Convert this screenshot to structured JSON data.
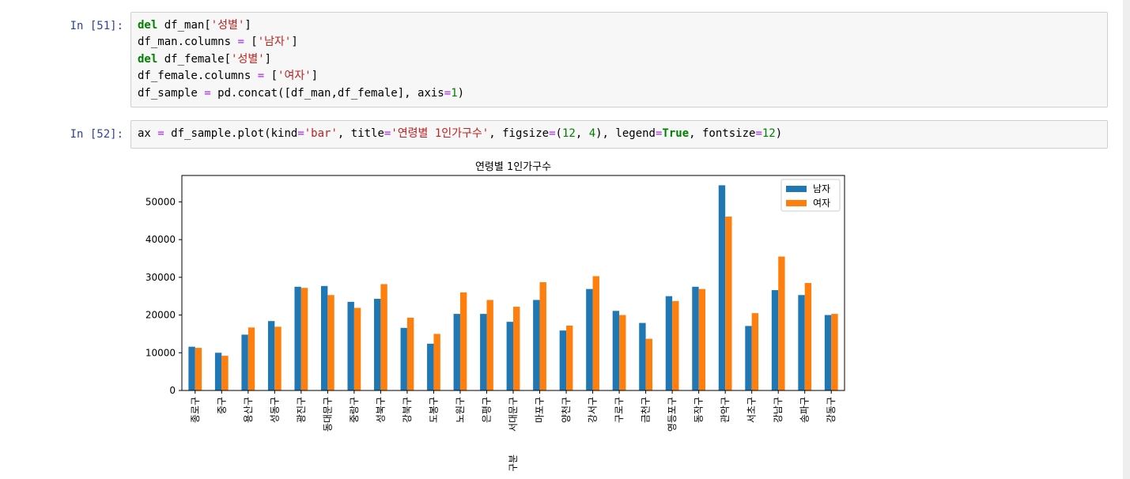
{
  "cells": [
    {
      "prompt": "In [51]:",
      "lines": [
        [
          {
            "t": "del",
            "c": "kw"
          },
          {
            "t": " df_man"
          },
          {
            "t": "["
          },
          {
            "t": "'성별'",
            "c": "str"
          },
          {
            "t": "]"
          }
        ],
        [
          {
            "t": "df_man.columns "
          },
          {
            "t": "=",
            "c": "op"
          },
          {
            "t": " ["
          },
          {
            "t": "'남자'",
            "c": "str"
          },
          {
            "t": "]"
          }
        ],
        [
          {
            "t": "del",
            "c": "kw"
          },
          {
            "t": " df_female"
          },
          {
            "t": "["
          },
          {
            "t": "'성별'",
            "c": "str"
          },
          {
            "t": "]"
          }
        ],
        [
          {
            "t": "df_female.columns "
          },
          {
            "t": "=",
            "c": "op"
          },
          {
            "t": " ["
          },
          {
            "t": "'여자'",
            "c": "str"
          },
          {
            "t": "]"
          }
        ],
        [
          {
            "t": "df_sample "
          },
          {
            "t": "=",
            "c": "op"
          },
          {
            "t": " pd.concat([df_man,df_female], axis"
          },
          {
            "t": "=",
            "c": "op"
          },
          {
            "t": "1",
            "c": "num"
          },
          {
            "t": ")"
          }
        ]
      ]
    },
    {
      "prompt": "In [52]:",
      "lines": [
        [
          {
            "t": "ax "
          },
          {
            "t": "=",
            "c": "op"
          },
          {
            "t": " df_sample.plot(kind"
          },
          {
            "t": "=",
            "c": "op"
          },
          {
            "t": "'bar'",
            "c": "str"
          },
          {
            "t": ", title"
          },
          {
            "t": "=",
            "c": "op"
          },
          {
            "t": "'연령별 1인가구수'",
            "c": "str"
          },
          {
            "t": ", figsize"
          },
          {
            "t": "=",
            "c": "op"
          },
          {
            "t": "("
          },
          {
            "t": "12",
            "c": "num"
          },
          {
            "t": ", "
          },
          {
            "t": "4",
            "c": "num"
          },
          {
            "t": "), legend"
          },
          {
            "t": "=",
            "c": "op"
          },
          {
            "t": "True",
            "c": "kw"
          },
          {
            "t": ", fontsize"
          },
          {
            "t": "=",
            "c": "op"
          },
          {
            "t": "12",
            "c": "num"
          },
          {
            "t": ")"
          }
        ]
      ]
    }
  ],
  "chart_data": {
    "type": "bar",
    "title": "연령별 1인가구수",
    "xlabel": "구분",
    "ylabel": "",
    "ylim": [
      0,
      57000
    ],
    "yticks": [
      0,
      10000,
      20000,
      30000,
      40000,
      50000
    ],
    "legend_position": "top-right",
    "grid": false,
    "categories": [
      "종로구",
      "중구",
      "용산구",
      "성동구",
      "광진구",
      "동대문구",
      "중랑구",
      "성북구",
      "강북구",
      "도봉구",
      "노원구",
      "은평구",
      "서대문구",
      "마포구",
      "양천구",
      "강서구",
      "구로구",
      "금천구",
      "영등포구",
      "동작구",
      "관악구",
      "서초구",
      "강남구",
      "송파구",
      "강동구"
    ],
    "series": [
      {
        "name": "남자",
        "color": "#1f77b4",
        "values": [
          11600,
          10000,
          14800,
          18400,
          27500,
          27700,
          23500,
          24300,
          16600,
          12400,
          20300,
          20300,
          18200,
          24000,
          15900,
          26900,
          21100,
          17900,
          25000,
          27500,
          54400,
          17100,
          26600,
          25300,
          20000
        ]
      },
      {
        "name": "여자",
        "color": "#ff7f0e",
        "values": [
          11300,
          9200,
          16700,
          16900,
          27200,
          25300,
          21900,
          28200,
          19300,
          15000,
          26000,
          24000,
          22200,
          28700,
          17200,
          30300,
          20000,
          13700,
          23700,
          26900,
          46100,
          20500,
          35500,
          28500,
          20300
        ]
      }
    ]
  }
}
